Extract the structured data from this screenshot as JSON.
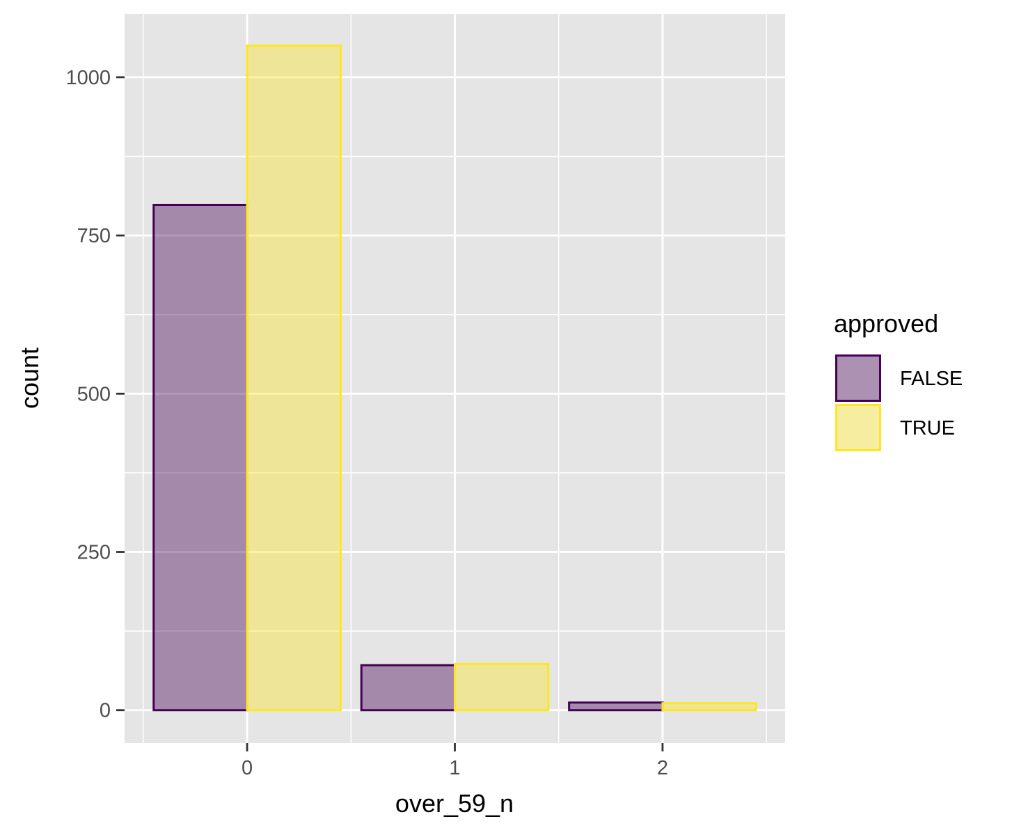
{
  "chart_data": {
    "type": "bar",
    "xlabel": "over_59_n",
    "ylabel": "count",
    "categories": [
      "0",
      "1",
      "2"
    ],
    "x_values": [
      0,
      1,
      2
    ],
    "xlim": [
      -0.59,
      2.59
    ],
    "ylim": [
      -52,
      1100
    ],
    "y_ticks": [
      0,
      250,
      500,
      750,
      1000
    ],
    "y_tick_labels": [
      "0",
      "250",
      "500",
      "750",
      "1000"
    ],
    "legend": {
      "title": "approved",
      "placement": "right"
    },
    "series": [
      {
        "name": "FALSE",
        "values": [
          798,
          71,
          12
        ],
        "fill": "#440154",
        "stroke": "#440154"
      },
      {
        "name": "TRUE",
        "values": [
          1050,
          73,
          11
        ],
        "fill": "#FDE725",
        "stroke": "#FDE725"
      }
    ],
    "grid": true,
    "panel_background": "#E5E5E5"
  }
}
